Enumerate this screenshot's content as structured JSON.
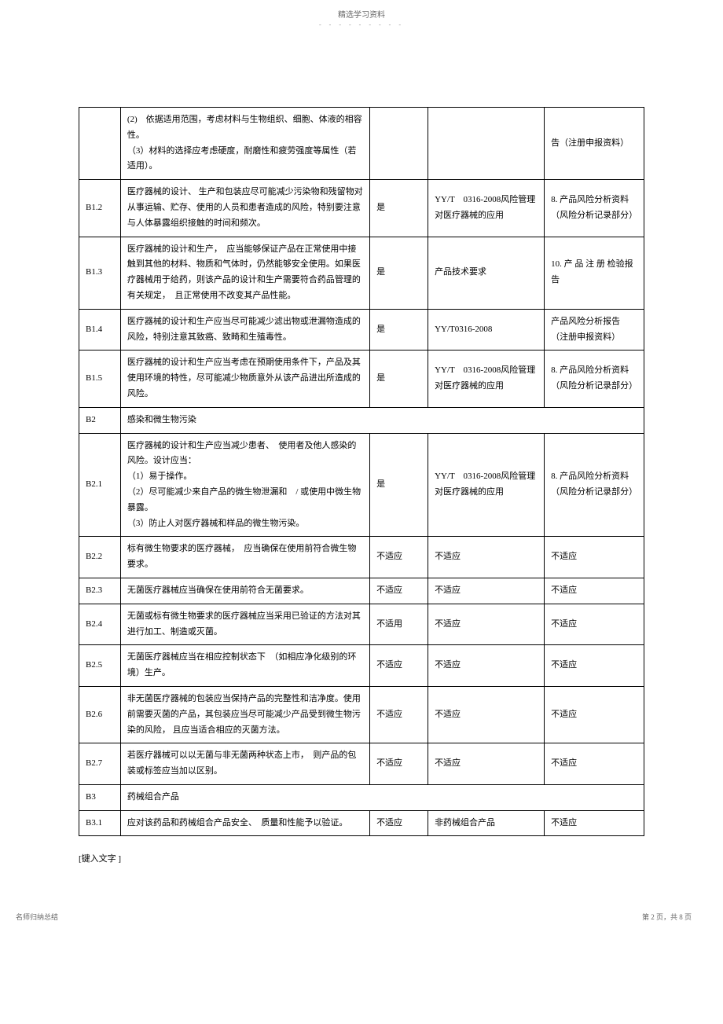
{
  "header": {
    "title": "精选学习资料",
    "dots": "- - - - - - - - -"
  },
  "rows": [
    {
      "id": "",
      "desc": "(2)　依据适用范围，考虑材料与生物组织、细胞、体液的相容性。\n（3）材料的选择应考虑硬度，耐磨性和疲劳强度等属性（若适用）。",
      "apply": "",
      "standard": "",
      "evidence": "告（注册申报资料）"
    },
    {
      "id": "B1.2",
      "desc": "医疗器械的设计、 生产和包装应尽可能减少污染物和残留物对从事运输、贮存、使用的人员和患者造成的风险，特别要注意与人体暴露组织接触的时间和频次。",
      "apply": "是",
      "standard": "YY/T　0316-2008风险管理对医疗器械的应用",
      "evidence": "8. 产品风险分析资料（风险分析记录部分）"
    },
    {
      "id": "B1.3",
      "desc": "医疗器械的设计和生产，　应当能够保证产品在正常使用中接触到其他的材料、物质和气体时，仍然能够安全使用。如果医疗器械用于给药，则该产品的设计和生产需要符合药品管理的有关规定，　且正常使用不改变其产品性能。",
      "apply": "是",
      "standard": "产品技术要求",
      "evidence": "10. 产 品 注 册 检验报告"
    },
    {
      "id": "B1.4",
      "desc": "医疗器械的设计和生产应当尽可能减少滤出物或泄漏物造成的风险，特别注意其致癌、致畸和生殖毒性。",
      "apply": "是",
      "standard": "YY/T0316-2008",
      "evidence": "产品风险分析报告（注册申报资料）"
    },
    {
      "id": "B1.5",
      "desc": "医疗器械的设计和生产应当考虑在预期使用条件下，产品及其使用环境的特性，尽可能减少物质意外从该产品进出所造成的风险。",
      "apply": "是",
      "standard": "YY/T　0316-2008风险管理对医疗器械的应用",
      "evidence": "8. 产品风险分析资料（风险分析记录部分）"
    },
    {
      "id": "B2",
      "desc": "感染和微生物污染",
      "section": true
    },
    {
      "id": "B2.1",
      "desc": "医疗器械的设计和生产应当减少患者、　使用者及他人感染的风险。设计应当：\n（1）易于操作。\n（2）尽可能减少来自产品的微生物泄漏和　/ 或使用中微生物暴露。\n（3）防止人对医疗器械和样品的微生物污染。",
      "apply": "是",
      "standard": "YY/T　0316-2008风险管理对医疗器械的应用",
      "evidence": "8. 产品风险分析资料（风险分析记录部分）"
    },
    {
      "id": "B2.2",
      "desc": "标有微生物要求的医疗器械，　应当确保在使用前符合微生物要求。",
      "apply": "不适应",
      "standard": "不适应",
      "evidence": "不适应"
    },
    {
      "id": "B2.3",
      "desc": "无菌医疗器械应当确保在使用前符合无菌要求。",
      "apply": "不适应",
      "standard": "不适应",
      "evidence": "不适应"
    },
    {
      "id": "B2.4",
      "desc": "无菌或标有微生物要求的医疗器械应当采用已验证的方法对其进行加工、制造或灭菌。",
      "apply": "不适用",
      "standard": "不适应",
      "evidence": "不适应"
    },
    {
      "id": "B2.5",
      "desc": "无菌医疗器械应当在相应控制状态下　（如相应净化级别的环境）生产。",
      "apply": "不适应",
      "standard": "不适应",
      "evidence": "不适应"
    },
    {
      "id": "B2.6",
      "desc": "非无菌医疗器械的包装应当保持产品的完整性和洁净度。使用前需要灭菌的产品，其包装应当尽可能减少产品受到微生物污染的风险， 且应当适合相应的灭菌方法。",
      "apply": "不适应",
      "standard": "不适应",
      "evidence": "不适应"
    },
    {
      "id": "B2.7",
      "desc": "若医疗器械可以以无菌与非无菌两种状态上市，　则产品的包装或标签应当加以区别。",
      "apply": "不适应",
      "standard": "不适应",
      "evidence": "不适应"
    },
    {
      "id": "B3",
      "desc": "药械组合产品",
      "section": true
    },
    {
      "id": "B3.1",
      "desc": "应对该药品和药械组合产品安全、　质量和性能予以验证。",
      "apply": "不适应",
      "standard": "非药械组合产品",
      "evidence": "不适应"
    }
  ],
  "footer": {
    "inputText": "[键入文字 ]",
    "bottomLeft": "名师归纳总结",
    "bottomRight": "第 2 页，共 8 页"
  }
}
